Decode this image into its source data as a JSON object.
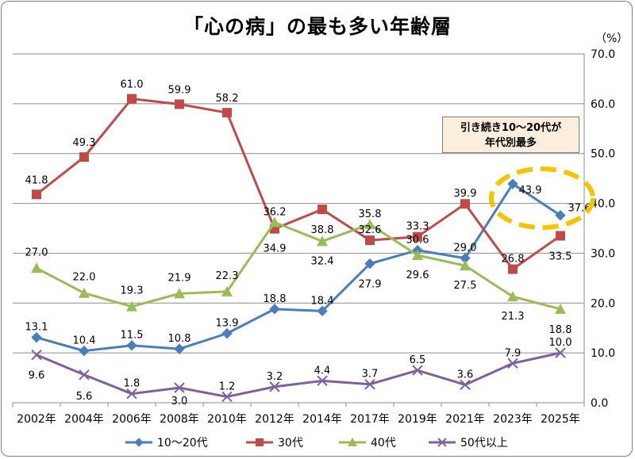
{
  "chart_data": {
    "type": "line",
    "title": "「心の病」の最も多い年齢層",
    "unit_label": "（%）",
    "categories": [
      "2002年",
      "2004年",
      "2006年",
      "2008年",
      "2010年",
      "2012年",
      "2014年",
      "2017年",
      "2019年",
      "2021年",
      "2023年",
      "2025年"
    ],
    "ylim": [
      0,
      70
    ],
    "y_ticks": [
      "0.0",
      "10.0",
      "20.0",
      "30.0",
      "40.0",
      "50.0",
      "60.0",
      "70.0"
    ],
    "y_axis_position": "right",
    "grid": true,
    "legend_position": "bottom",
    "series": [
      {
        "name": "10～20代",
        "color": "#4a7ebb",
        "marker": "diamond",
        "values": [
          13.1,
          10.4,
          11.5,
          10.8,
          13.9,
          18.8,
          18.4,
          27.9,
          30.6,
          29.0,
          43.9,
          37.6
        ],
        "labels": [
          "13.1",
          "10.4",
          "11.5",
          "10.8",
          "13.9",
          "18.8",
          "18.4",
          "27.9",
          "30.6",
          "29.0",
          "43.9",
          "37.6"
        ]
      },
      {
        "name": "30代",
        "color": "#be4b48",
        "marker": "square",
        "values": [
          41.8,
          49.3,
          61.0,
          59.9,
          58.2,
          34.9,
          38.8,
          32.6,
          33.3,
          39.9,
          26.8,
          33.5
        ],
        "labels": [
          "41.8",
          "49.3",
          "61.0",
          "59.9",
          "58.2",
          "34.9",
          "38.8",
          "32.6",
          "33.3",
          "39.9",
          "26.8",
          "33.5"
        ]
      },
      {
        "name": "40代",
        "color": "#9bbb59",
        "marker": "triangle",
        "values": [
          27.0,
          22.0,
          19.3,
          21.9,
          22.3,
          36.2,
          32.4,
          35.8,
          29.6,
          27.5,
          21.3,
          18.8
        ],
        "labels": [
          "27.0",
          "22.0",
          "19.3",
          "21.9",
          "22.3",
          "36.2",
          "32.4",
          "35.8",
          "29.6",
          "27.5",
          "21.3",
          "18.8"
        ]
      },
      {
        "name": "50代以上",
        "color": "#7d60a0",
        "marker": "x",
        "values": [
          9.6,
          5.6,
          1.8,
          3.0,
          1.2,
          3.2,
          4.4,
          3.7,
          6.5,
          3.6,
          7.9,
          10.0
        ],
        "labels": [
          "9.6",
          "5.6",
          "1.8",
          "3.0",
          "1.2",
          "3.2",
          "4.4",
          "3.7",
          "6.5",
          "3.6",
          "7.9",
          "10.0"
        ]
      }
    ],
    "annotation": {
      "lines": [
        "引き続き10～20代が",
        "年代別最多"
      ],
      "highlight_color": "#f5c400"
    }
  }
}
